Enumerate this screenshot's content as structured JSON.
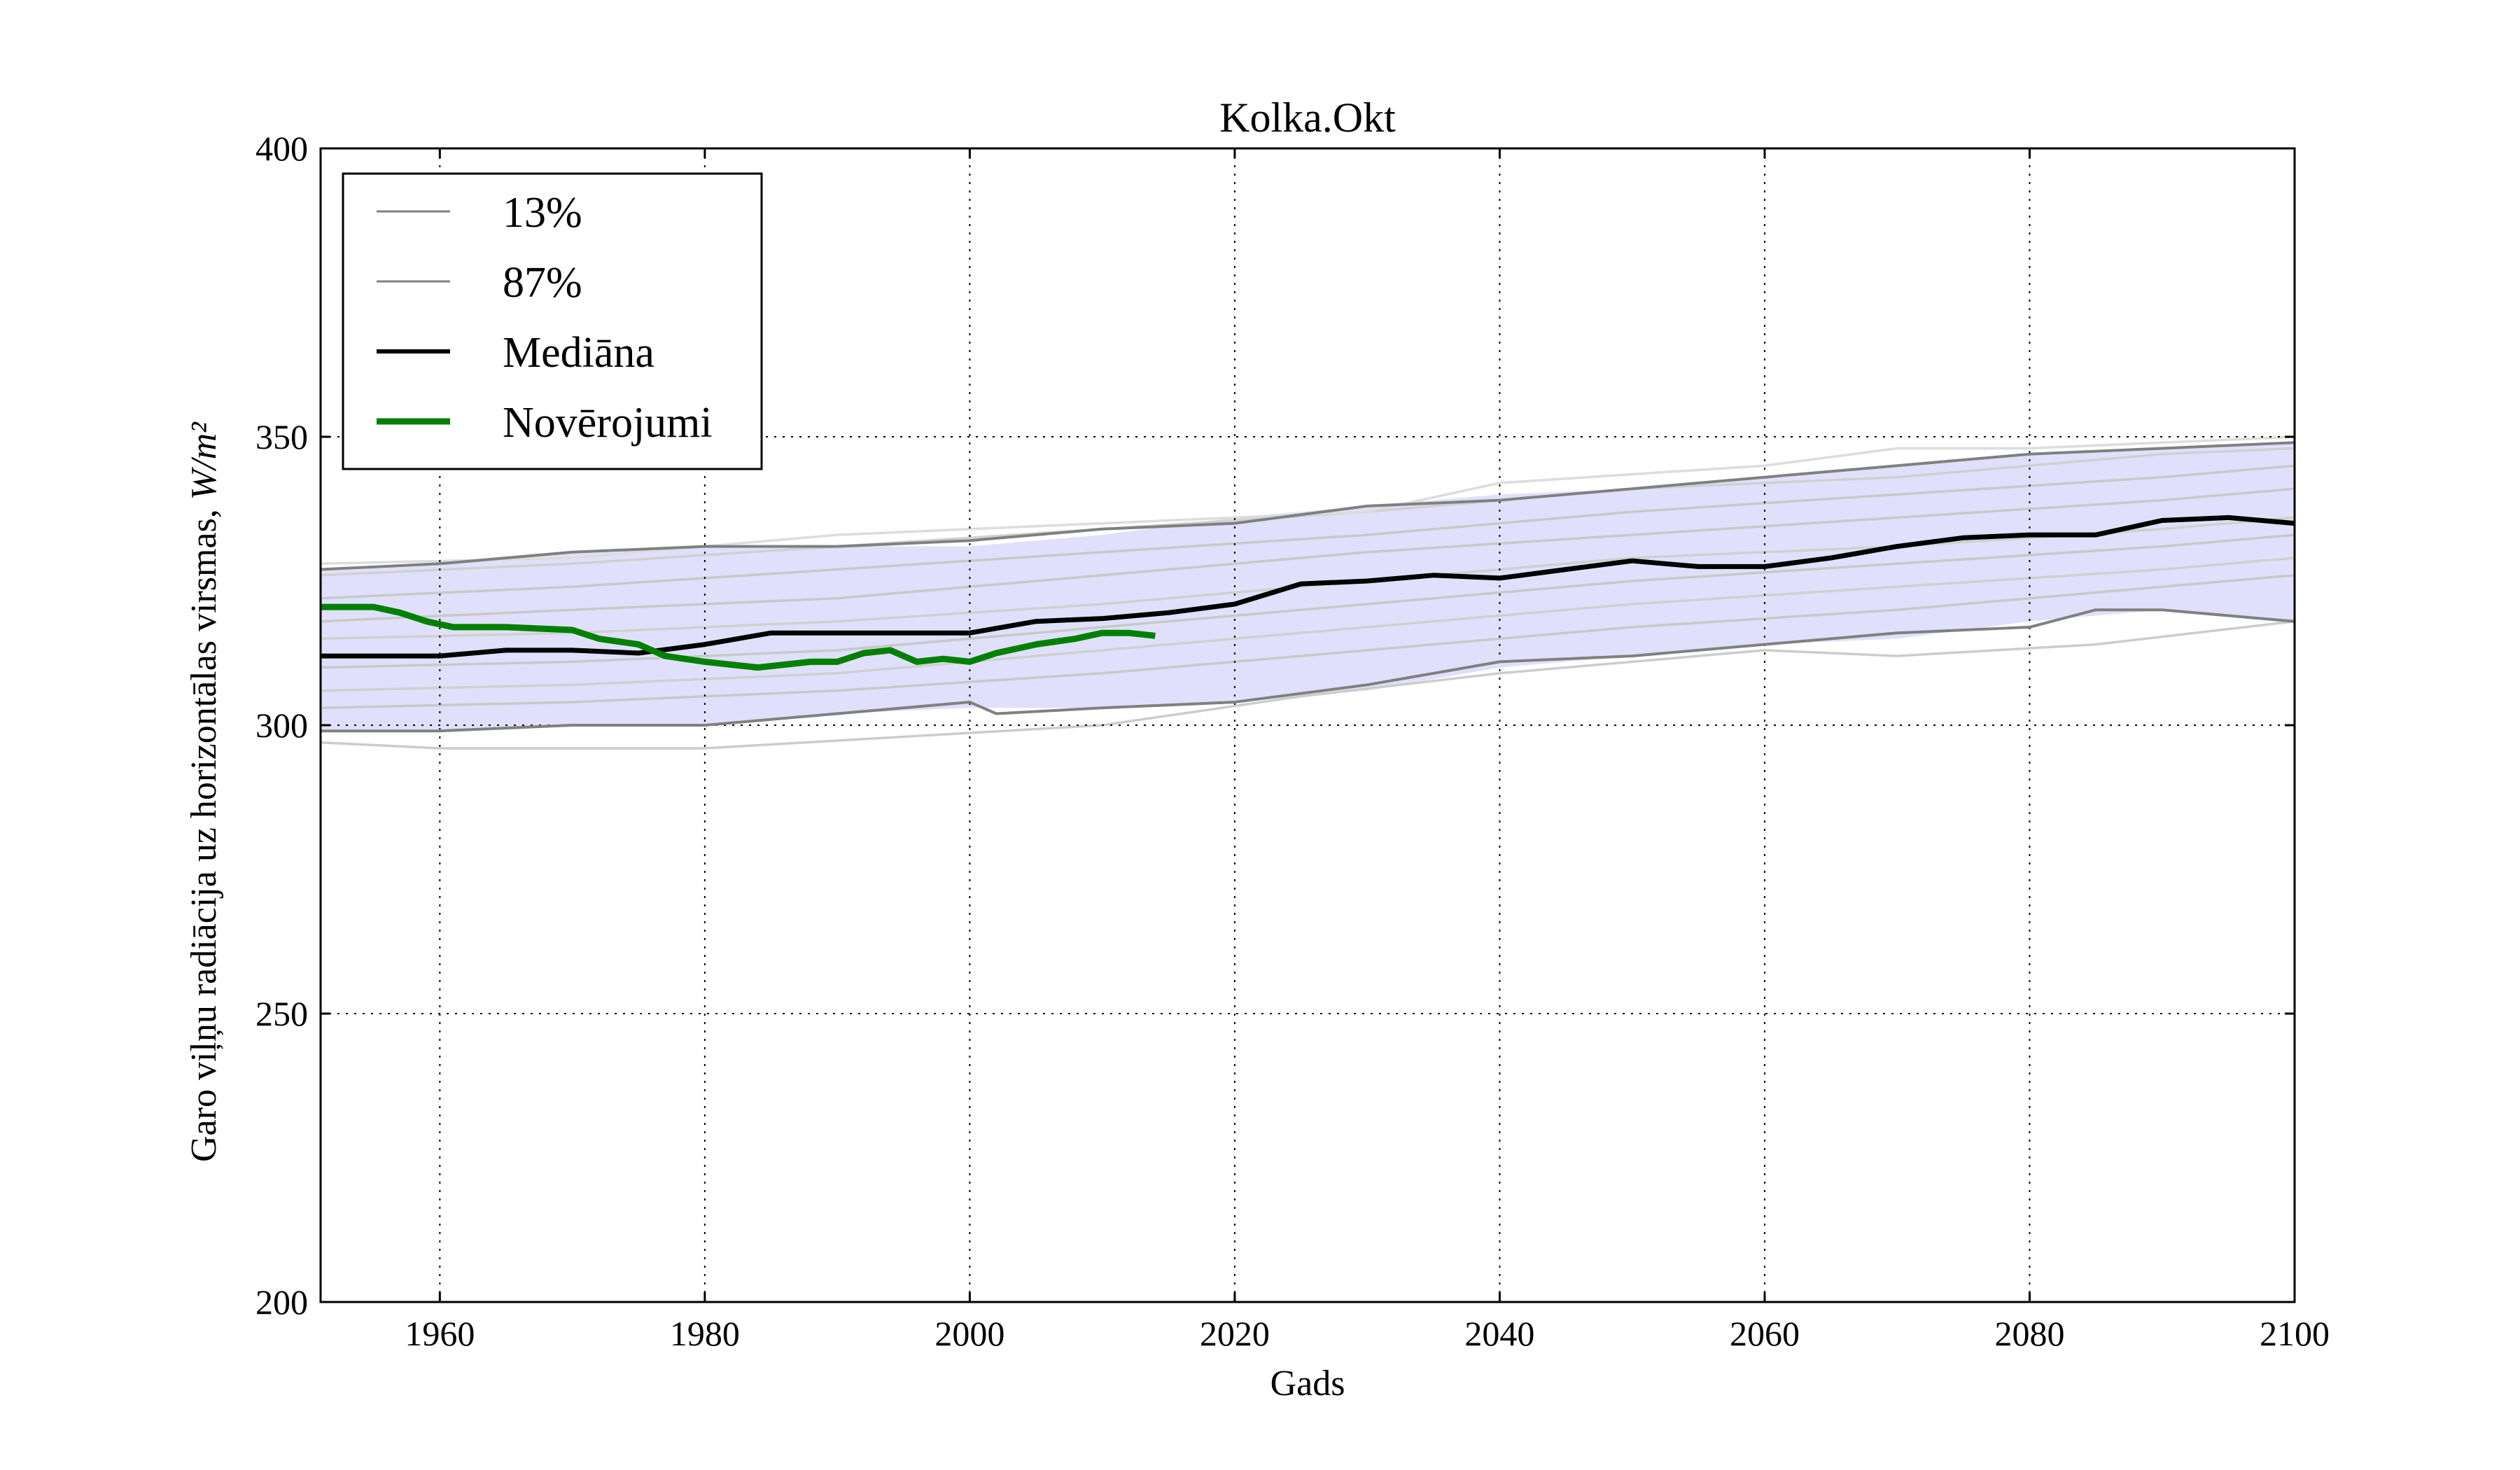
{
  "chart_data": {
    "type": "line",
    "title": "Kolka.Okt",
    "xlabel": "Gads",
    "ylabel": "Garo viļņu radiācija uz horizontālas virsmas, ",
    "ylabel_unit": "W/m²",
    "xlim": [
      1951,
      2100
    ],
    "ylim": [
      200,
      400
    ],
    "xticks": [
      "1960",
      "1980",
      "2000",
      "2020",
      "2040",
      "2060",
      "2080",
      "2100"
    ],
    "yticks": [
      "200",
      "250",
      "300",
      "350",
      "400"
    ],
    "grid": true,
    "legend_position": "top-left",
    "legend": [
      {
        "label": "13%",
        "color": "#808080"
      },
      {
        "label": "87%",
        "color": "#808080"
      },
      {
        "label": "Mediāna",
        "color": "#000000"
      },
      {
        "label": "Novērojumi",
        "color": "#008000"
      }
    ],
    "band": {
      "color": "#e0e0fc",
      "x": [
        1951,
        1960,
        1970,
        1980,
        1990,
        2000,
        2010,
        2020,
        2030,
        2040,
        2050,
        2060,
        2070,
        2080,
        2090,
        2100
      ],
      "upper": [
        327,
        328,
        330,
        331,
        331,
        331,
        333,
        336,
        338,
        340,
        341,
        343,
        345,
        347,
        348,
        349
      ],
      "lower": [
        299,
        299,
        300,
        300,
        302,
        303,
        303,
        304,
        306,
        310,
        312,
        314,
        315,
        318,
        320,
        318
      ]
    },
    "series": [
      {
        "name": "13%",
        "color": "#808080",
        "role": "percentile",
        "x": [
          1951,
          1960,
          1970,
          1980,
          1990,
          2000,
          2002,
          2010,
          2020,
          2030,
          2040,
          2050,
          2060,
          2070,
          2080,
          2085,
          2090,
          2100
        ],
        "y": [
          299,
          299,
          300,
          300,
          302,
          304,
          302,
          303,
          304,
          307,
          311,
          312,
          314,
          316,
          317,
          320,
          320,
          318
        ]
      },
      {
        "name": "87%",
        "color": "#808080",
        "role": "percentile",
        "x": [
          1951,
          1960,
          1970,
          1980,
          1990,
          2000,
          2010,
          2020,
          2030,
          2040,
          2050,
          2060,
          2070,
          2080,
          2090,
          2100
        ],
        "y": [
          327,
          328,
          330,
          331,
          331,
          332,
          334,
          335,
          338,
          339,
          341,
          343,
          345,
          347,
          348,
          349
        ]
      },
      {
        "name": "Mediāna",
        "color": "#000000",
        "role": "median",
        "x": [
          1951,
          1955,
          1960,
          1965,
          1970,
          1975,
          1980,
          1985,
          1990,
          1995,
          2000,
          2005,
          2010,
          2015,
          2020,
          2025,
          2030,
          2035,
          2040,
          2045,
          2050,
          2055,
          2060,
          2065,
          2070,
          2075,
          2080,
          2085,
          2090,
          2095,
          2100
        ],
        "y": [
          312,
          312,
          312,
          313,
          313,
          312.5,
          314,
          316,
          316,
          316,
          316,
          318,
          318.5,
          319.5,
          321,
          324.5,
          325,
          326,
          325.5,
          327,
          328.5,
          327.5,
          327.5,
          329,
          331,
          332.5,
          333,
          333,
          335.5,
          336,
          335
        ]
      },
      {
        "name": "Novērojumi",
        "color": "#008000",
        "role": "observed",
        "x": [
          1951,
          1955,
          1957,
          1959,
          1961,
          1965,
          1970,
          1972,
          1975,
          1977,
          1980,
          1982,
          1984,
          1986,
          1988,
          1990,
          1992,
          1994,
          1996,
          1998,
          2000,
          2002,
          2005,
          2008,
          2010,
          2012,
          2014
        ],
        "y": [
          320.5,
          320.5,
          319.5,
          318,
          317,
          317,
          316.5,
          315,
          314,
          312,
          311,
          310.5,
          310,
          310.5,
          311,
          311,
          312.5,
          313,
          311,
          311.5,
          311,
          312.5,
          314,
          315,
          316,
          316,
          315.5
        ]
      }
    ],
    "ensemble_members": [
      {
        "color": "#d0d0d0",
        "x": [
          1951,
          1970,
          1990,
          2010,
          2030,
          2050,
          2070,
          2090,
          2100
        ],
        "y": [
          326,
          328,
          331,
          334,
          337,
          341,
          343,
          347,
          348
        ]
      },
      {
        "color": "#c8c8c8",
        "x": [
          1951,
          1970,
          1990,
          2010,
          2030,
          2050,
          2070,
          2090,
          2100
        ],
        "y": [
          322,
          324,
          327,
          330,
          333,
          337,
          340,
          343,
          345
        ]
      },
      {
        "color": "#c8c8c8",
        "x": [
          1951,
          1970,
          1990,
          2010,
          2030,
          2050,
          2070,
          2090,
          2100
        ],
        "y": [
          318,
          320,
          322,
          326,
          330,
          333,
          336,
          339,
          341
        ]
      },
      {
        "color": "#d0d0d0",
        "x": [
          1951,
          1970,
          1990,
          2010,
          2030,
          2050,
          2070,
          2090,
          2100
        ],
        "y": [
          315,
          316,
          318,
          321,
          325,
          329,
          331,
          334,
          336
        ]
      },
      {
        "color": "#c8c8c8",
        "x": [
          1951,
          1970,
          1990,
          2010,
          2030,
          2050,
          2070,
          2090,
          2100
        ],
        "y": [
          310,
          311,
          313,
          317,
          321,
          325,
          328,
          331,
          333
        ]
      },
      {
        "color": "#d0d0d0",
        "x": [
          1951,
          1970,
          1990,
          2010,
          2030,
          2050,
          2070,
          2090,
          2100
        ],
        "y": [
          306,
          307,
          309,
          313,
          317,
          321,
          324,
          327,
          329
        ]
      },
      {
        "color": "#c8c8c8",
        "x": [
          1951,
          1970,
          1990,
          2010,
          2030,
          2050,
          2070,
          2090,
          2100
        ],
        "y": [
          303,
          304,
          306,
          309,
          313,
          317,
          320,
          324,
          326
        ]
      },
      {
        "color": "#cccccc",
        "x": [
          1951,
          1960,
          1980,
          1995,
          2010,
          2025,
          2040,
          2060,
          2070,
          2085,
          2100
        ],
        "y": [
          297,
          296,
          296,
          298,
          300,
          305,
          309,
          313,
          312,
          314,
          318
        ]
      },
      {
        "color": "#dcdcdc",
        "x": [
          1951,
          1970,
          1990,
          2010,
          2030,
          2040,
          2060,
          2070,
          2080,
          2100
        ],
        "y": [
          328,
          329,
          333,
          335,
          337,
          342,
          345,
          348,
          348,
          350
        ]
      }
    ]
  }
}
